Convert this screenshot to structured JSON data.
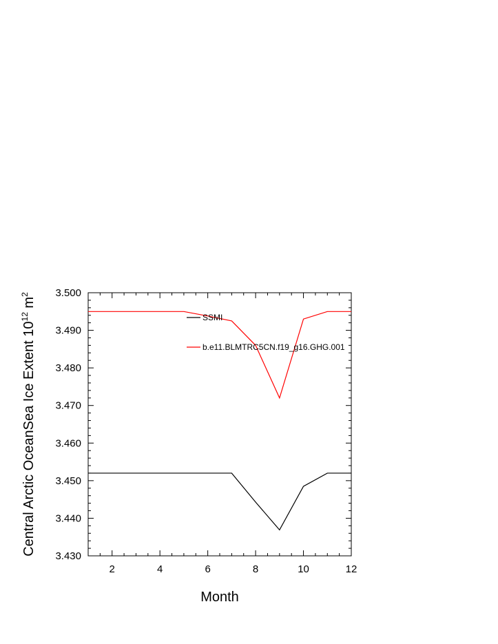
{
  "chart_data": {
    "type": "line",
    "xlabel": "Month",
    "ylabel": {
      "prefix": "Central Arctic OceanSea Ice Extent 10",
      "exp1": "12",
      "mid": " m",
      "exp2": "2"
    },
    "xlim": [
      1,
      12
    ],
    "ylim": [
      3.43,
      3.5
    ],
    "x_ticks": [
      2,
      4,
      6,
      8,
      10,
      12
    ],
    "y_ticks": [
      "3.430",
      "3.440",
      "3.450",
      "3.460",
      "3.470",
      "3.480",
      "3.490",
      "3.500"
    ],
    "x": [
      1,
      2,
      3,
      4,
      5,
      6,
      7,
      8,
      9,
      10,
      11,
      12
    ],
    "series": [
      {
        "name": "SSMI",
        "color": "#000000",
        "values": [
          3.452,
          3.452,
          3.452,
          3.452,
          3.452,
          3.452,
          3.452,
          3.4443,
          3.4369,
          3.4485,
          3.452,
          3.452
        ]
      },
      {
        "name": "b.e11.BLMTRC5CN.f19_g16.GHG.001",
        "color": "#ff0000",
        "values": [
          3.495,
          3.495,
          3.495,
          3.495,
          3.495,
          3.4938,
          3.4925,
          3.486,
          3.472,
          3.493,
          3.495,
          3.495
        ]
      }
    ],
    "legend_position": "top-right",
    "grid": false
  }
}
